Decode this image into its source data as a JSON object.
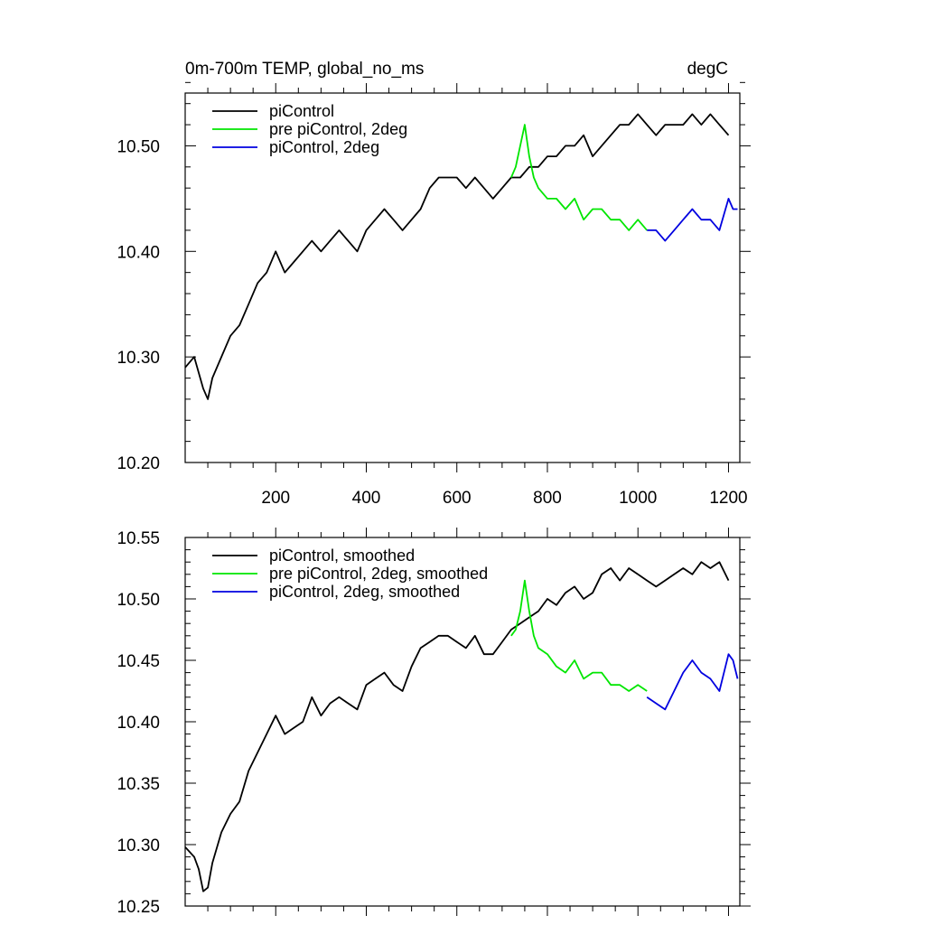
{
  "chart_data": [
    {
      "type": "line",
      "title": "0m-700m TEMP, global_no_ms",
      "units": "degC",
      "xlim": [
        0,
        1225
      ],
      "ylim": [
        10.2,
        10.55
      ],
      "xticks": [
        200,
        400,
        600,
        800,
        1000,
        1200
      ],
      "xtick_labels": [
        "200",
        "400",
        "600",
        "800",
        "1000",
        "1200"
      ],
      "yticks": [
        10.2,
        10.3,
        10.4,
        10.5
      ],
      "ytick_labels": [
        "10.20",
        "10.30",
        "10.40",
        "10.50"
      ],
      "legend_position": "top-left",
      "series": [
        {
          "name": "piControl",
          "color": "#000000",
          "x": [
            0,
            20,
            40,
            50,
            60,
            80,
            100,
            120,
            140,
            160,
            180,
            200,
            220,
            240,
            260,
            280,
            300,
            320,
            340,
            360,
            380,
            400,
            420,
            440,
            460,
            480,
            500,
            520,
            540,
            560,
            580,
            600,
            620,
            640,
            660,
            680,
            700,
            720,
            740,
            760,
            780,
            800,
            820,
            840,
            860,
            880,
            900,
            920,
            940,
            960,
            980,
            1000,
            1020,
            1040,
            1060,
            1080,
            1100,
            1120,
            1140,
            1160,
            1180,
            1200
          ],
          "y": [
            10.29,
            10.3,
            10.27,
            10.26,
            10.28,
            10.3,
            10.32,
            10.33,
            10.35,
            10.37,
            10.38,
            10.4,
            10.38,
            10.39,
            10.4,
            10.41,
            10.4,
            10.41,
            10.42,
            10.41,
            10.4,
            10.42,
            10.43,
            10.44,
            10.43,
            10.42,
            10.43,
            10.44,
            10.46,
            10.47,
            10.47,
            10.47,
            10.46,
            10.47,
            10.46,
            10.45,
            10.46,
            10.47,
            10.47,
            10.48,
            10.48,
            10.49,
            10.49,
            10.5,
            10.5,
            10.51,
            10.49,
            10.5,
            10.51,
            10.52,
            10.52,
            10.53,
            10.52,
            10.51,
            10.52,
            10.52,
            10.52,
            10.53,
            10.52,
            10.53,
            10.52,
            10.51
          ]
        },
        {
          "name": "pre piControl, 2deg",
          "color": "#00e600",
          "x": [
            720,
            730,
            740,
            750,
            760,
            770,
            780,
            800,
            820,
            840,
            860,
            880,
            900,
            920,
            940,
            960,
            980,
            1000,
            1020
          ],
          "y": [
            10.47,
            10.48,
            10.5,
            10.52,
            10.49,
            10.47,
            10.46,
            10.45,
            10.45,
            10.44,
            10.45,
            10.43,
            10.44,
            10.44,
            10.43,
            10.43,
            10.42,
            10.43,
            10.42
          ]
        },
        {
          "name": "piControl, 2deg",
          "color": "#0000e0",
          "x": [
            1020,
            1040,
            1060,
            1080,
            1100,
            1120,
            1140,
            1160,
            1180,
            1200,
            1210,
            1220
          ],
          "y": [
            10.42,
            10.42,
            10.41,
            10.42,
            10.43,
            10.44,
            10.43,
            10.43,
            10.42,
            10.45,
            10.44,
            10.44
          ]
        }
      ]
    },
    {
      "type": "line",
      "xlim": [
        0,
        1225
      ],
      "ylim": [
        10.25,
        10.55
      ],
      "yticks": [
        10.25,
        10.3,
        10.35,
        10.4,
        10.45,
        10.5,
        10.55
      ],
      "ytick_labels": [
        "10.25",
        "10.30",
        "10.35",
        "10.40",
        "10.45",
        "10.50",
        "10.55"
      ],
      "legend_position": "top-left",
      "series": [
        {
          "name": "piControl, smoothed",
          "color": "#000000",
          "x": [
            0,
            20,
            30,
            40,
            50,
            60,
            80,
            100,
            120,
            140,
            160,
            180,
            200,
            220,
            240,
            260,
            280,
            300,
            320,
            340,
            360,
            380,
            400,
            420,
            440,
            460,
            480,
            500,
            520,
            540,
            560,
            580,
            600,
            620,
            640,
            660,
            680,
            700,
            720,
            740,
            760,
            780,
            800,
            820,
            840,
            860,
            880,
            900,
            920,
            940,
            960,
            980,
            1000,
            1020,
            1040,
            1060,
            1080,
            1100,
            1120,
            1140,
            1160,
            1180,
            1200
          ],
          "y": [
            10.298,
            10.29,
            10.28,
            10.262,
            10.265,
            10.285,
            10.31,
            10.325,
            10.335,
            10.36,
            10.375,
            10.39,
            10.405,
            10.39,
            10.395,
            10.4,
            10.42,
            10.405,
            10.415,
            10.42,
            10.415,
            10.41,
            10.43,
            10.435,
            10.44,
            10.43,
            10.425,
            10.445,
            10.46,
            10.465,
            10.47,
            10.47,
            10.465,
            10.46,
            10.47,
            10.455,
            10.455,
            10.465,
            10.475,
            10.48,
            10.485,
            10.49,
            10.5,
            10.495,
            10.505,
            10.51,
            10.5,
            10.505,
            10.52,
            10.525,
            10.515,
            10.525,
            10.52,
            10.515,
            10.51,
            10.515,
            10.52,
            10.525,
            10.52,
            10.53,
            10.525,
            10.53,
            10.515
          ]
        },
        {
          "name": "pre piControl, 2deg, smoothed",
          "color": "#00e600",
          "x": [
            720,
            730,
            740,
            750,
            760,
            770,
            780,
            800,
            820,
            840,
            860,
            880,
            900,
            920,
            940,
            960,
            980,
            1000,
            1020
          ],
          "y": [
            10.47,
            10.475,
            10.49,
            10.515,
            10.49,
            10.47,
            10.46,
            10.455,
            10.445,
            10.44,
            10.45,
            10.435,
            10.44,
            10.44,
            10.43,
            10.43,
            10.425,
            10.43,
            10.425
          ]
        },
        {
          "name": "piControl, 2deg, smoothed",
          "color": "#0000e0",
          "x": [
            1020,
            1040,
            1060,
            1080,
            1100,
            1120,
            1140,
            1160,
            1180,
            1200,
            1210,
            1220
          ],
          "y": [
            10.42,
            10.415,
            10.41,
            10.425,
            10.44,
            10.45,
            10.44,
            10.435,
            10.425,
            10.455,
            10.45,
            10.435
          ]
        }
      ]
    }
  ]
}
